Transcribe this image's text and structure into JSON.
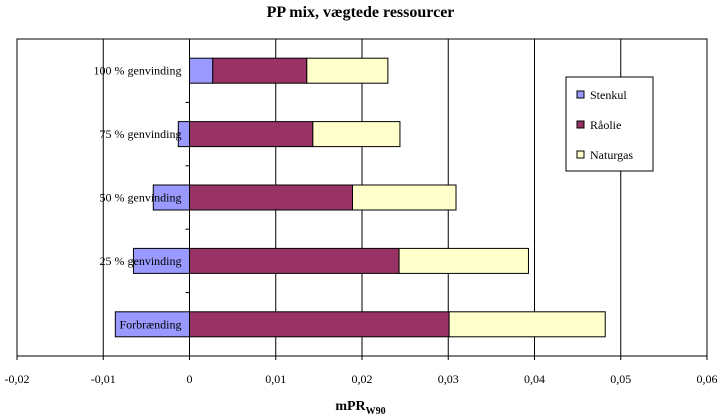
{
  "chart_data": {
    "type": "bar",
    "orientation": "horizontal",
    "stacked": true,
    "title": "PP mix, vægtede ressourcer",
    "xlabel": "mPR",
    "xlabel_subscript": "W90",
    "ylabel": "",
    "categories": [
      "100 % genvinding",
      "75 % genvinding",
      "50 % genvinding",
      "25 % genvinding",
      "Forbrænding"
    ],
    "series": [
      {
        "name": "Stenkul",
        "color": "#9999ff",
        "values": [
          0.0027,
          -0.0013,
          -0.0042,
          -0.0065,
          -0.0086
        ]
      },
      {
        "name": "Råolie",
        "color": "#993366",
        "values": [
          0.0109,
          0.0143,
          0.0189,
          0.0243,
          0.0301
        ]
      },
      {
        "name": "Naturgas",
        "color": "#ffffcc",
        "values": [
          0.0094,
          0.0101,
          0.012,
          0.015,
          0.0181
        ]
      }
    ],
    "xlim": [
      -0.02,
      0.06
    ],
    "xticks": [
      -0.02,
      -0.01,
      0,
      0.01,
      0.02,
      0.03,
      0.04,
      0.05,
      0.06
    ],
    "xtick_labels": [
      "-0,02",
      "-0,01",
      "0",
      "0,01",
      "0,02",
      "0,03",
      "0,04",
      "0,05",
      "0,06"
    ],
    "grid": "vertical",
    "legend_position": "right"
  }
}
